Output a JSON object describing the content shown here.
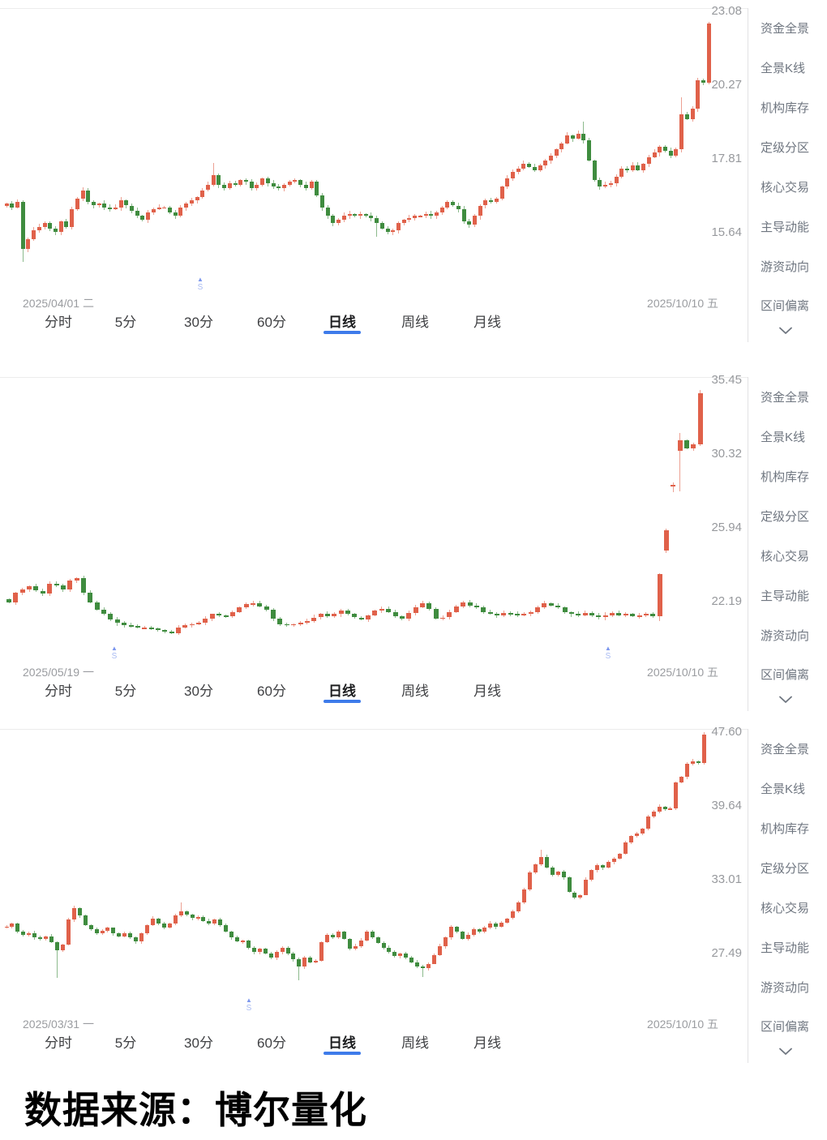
{
  "footer": {
    "source_text": "数据来源：博尔量化"
  },
  "colors": {
    "up": "#e0614a",
    "down": "#3f8c3f",
    "tab_underline": "#3e7bea",
    "signal_triangle": "#7c97ee",
    "signal_letter": "#a9bbf2",
    "axis_text": "#97999d",
    "sidebar_text": "#6f7680",
    "divider": "#e2e2e4"
  },
  "sidebar_items": [
    "资金全景",
    "全景K线",
    "机构库存",
    "定级分区",
    "核心交易",
    "主导动能",
    "游资动向",
    "区间偏离"
  ],
  "timeframe_tabs": [
    "分时",
    "5分",
    "30分",
    "60分",
    "日线",
    "周线",
    "月线"
  ],
  "active_tab": "日线",
  "active_tab_index": 4,
  "signal_marker_glyph": "▲",
  "signal_marker_letter": "S",
  "chart_data": [
    {
      "type": "candlestick",
      "start_date": "2025/04/01 二",
      "end_date": "2025/10/10 五",
      "y_axis_labels": [
        "23.08",
        "20.27",
        "17.81",
        "15.64"
      ],
      "y_log_scale": true,
      "signals_x": [
        247
      ],
      "first_open": 16.38,
      "closes": [
        16.45,
        16.35,
        16.5,
        15.2,
        15.45,
        15.7,
        15.8,
        15.9,
        15.75,
        15.65,
        15.95,
        15.8,
        16.3,
        16.6,
        16.85,
        16.5,
        16.4,
        16.45,
        16.35,
        16.3,
        16.35,
        16.55,
        16.4,
        16.25,
        16.1,
        16.0,
        16.2,
        16.3,
        16.35,
        16.35,
        16.2,
        16.1,
        16.35,
        16.45,
        16.55,
        16.65,
        16.85,
        17.0,
        17.3,
        17.0,
        16.9,
        17.05,
        17.0,
        17.15,
        17.1,
        16.9,
        17.0,
        17.2,
        17.05,
        16.95,
        16.9,
        17.0,
        17.1,
        17.15,
        17.0,
        16.9,
        17.1,
        16.7,
        16.35,
        16.1,
        15.9,
        16.0,
        16.1,
        16.15,
        16.1,
        16.15,
        16.1,
        16.05,
        15.9,
        15.75,
        15.65,
        15.7,
        15.9,
        16.0,
        16.05,
        16.1,
        16.1,
        16.15,
        16.1,
        16.2,
        16.35,
        16.5,
        16.4,
        16.3,
        15.95,
        15.85,
        16.1,
        16.4,
        16.55,
        16.5,
        16.6,
        16.95,
        17.2,
        17.4,
        17.5,
        17.65,
        17.55,
        17.45,
        17.6,
        17.75,
        17.9,
        18.1,
        18.3,
        18.55,
        18.45,
        18.6,
        18.4,
        17.75,
        17.15,
        16.95,
        17.0,
        17.05,
        17.25,
        17.5,
        17.45,
        17.6,
        17.45,
        17.65,
        17.85,
        18.0,
        18.2,
        18.05,
        17.9,
        18.1,
        19.25,
        19.1,
        19.45,
        20.45,
        20.35,
        22.6
      ],
      "opens_override": [],
      "spikes_low": [
        [
          3,
          14.85
        ],
        [
          68,
          15.52
        ]
      ],
      "spikes_high": [
        [
          38,
          17.68
        ],
        [
          106,
          19.0
        ],
        [
          124,
          19.85
        ]
      ]
    },
    {
      "type": "candlestick",
      "start_date": "2025/05/19 一",
      "end_date": "2025/10/10 五",
      "y_axis_labels": [
        "35.45",
        "30.32",
        "25.94",
        "22.19"
      ],
      "y_log_scale": true,
      "signals_x": [
        141,
        750
      ],
      "first_open": 22.28,
      "closes": [
        22.15,
        22.6,
        22.75,
        22.9,
        22.7,
        22.55,
        23.05,
        22.95,
        22.75,
        23.2,
        23.3,
        22.6,
        22.15,
        21.8,
        21.6,
        21.35,
        21.2,
        21.1,
        21.05,
        21.0,
        21.0,
        20.95,
        20.9,
        20.8,
        20.75,
        21.0,
        21.1,
        21.15,
        21.2,
        21.4,
        21.6,
        21.55,
        21.5,
        21.7,
        21.9,
        22.05,
        22.1,
        21.95,
        21.8,
        21.4,
        21.15,
        21.1,
        21.15,
        21.2,
        21.3,
        21.45,
        21.6,
        21.5,
        21.6,
        21.75,
        21.6,
        21.45,
        21.35,
        21.55,
        21.75,
        21.85,
        21.7,
        21.5,
        21.4,
        21.65,
        21.9,
        22.1,
        21.85,
        21.4,
        21.45,
        21.7,
        21.95,
        22.15,
        22.0,
        21.9,
        21.7,
        21.6,
        21.55,
        21.65,
        21.6,
        21.55,
        21.6,
        21.7,
        21.9,
        22.1,
        22.0,
        21.9,
        21.7,
        21.6,
        21.55,
        21.65,
        21.55,
        21.45,
        21.55,
        21.65,
        21.55,
        21.6,
        21.5,
        21.55,
        21.6,
        21.5,
        23.5,
        25.8,
        28.4,
        31.2,
        30.7,
        30.95,
        34.5
      ],
      "opens_override": [
        [
          97,
          24.7
        ],
        [
          98,
          28.3
        ],
        [
          99,
          30.5
        ]
      ],
      "spikes_low": [
        [
          96,
          21.3
        ],
        [
          98,
          27.95
        ],
        [
          99,
          28.0
        ]
      ],
      "spikes_high": [
        [
          99,
          31.7
        ],
        [
          102,
          34.7
        ]
      ]
    },
    {
      "type": "candlestick",
      "start_date": "2025/03/31 一",
      "end_date": "2025/10/10 五",
      "y_axis_labels": [
        "47.60",
        "39.64",
        "33.01",
        "27.49"
      ],
      "y_log_scale": true,
      "signals_x": [
        307
      ],
      "first_open": 29.3,
      "closes": [
        29.4,
        29.6,
        29.0,
        28.8,
        28.9,
        28.6,
        28.5,
        28.7,
        28.3,
        27.7,
        28.1,
        29.9,
        30.8,
        30.2,
        29.5,
        29.2,
        28.9,
        29.1,
        29.3,
        28.9,
        28.7,
        28.9,
        28.6,
        28.3,
        28.9,
        29.5,
        30.0,
        29.6,
        29.3,
        29.6,
        30.2,
        30.5,
        30.3,
        30.0,
        30.1,
        29.8,
        29.6,
        29.9,
        29.5,
        29.0,
        28.6,
        28.3,
        28.4,
        27.9,
        27.6,
        27.8,
        27.5,
        27.2,
        27.6,
        27.9,
        27.5,
        27.1,
        26.6,
        27.2,
        26.9,
        27.0,
        28.3,
        28.8,
        28.6,
        29.0,
        28.5,
        27.8,
        28.0,
        28.4,
        29.0,
        28.6,
        28.2,
        27.9,
        27.6,
        27.3,
        27.5,
        27.2,
        26.9,
        26.6,
        26.5,
        26.8,
        27.4,
        28.0,
        28.6,
        29.4,
        29.0,
        28.5,
        28.8,
        29.2,
        29.0,
        29.3,
        29.6,
        29.4,
        29.7,
        30.0,
        30.5,
        31.2,
        32.2,
        33.6,
        34.3,
        34.9,
        34.0,
        33.4,
        33.7,
        33.2,
        32.0,
        31.6,
        31.8,
        33.0,
        33.8,
        34.2,
        34.0,
        34.5,
        34.8,
        35.2,
        36.2,
        36.8,
        37.0,
        37.5,
        38.6,
        39.1,
        39.6,
        39.3,
        39.4,
        42.0,
        42.6,
        44.0,
        44.3,
        44.1,
        47.3
      ],
      "opens_override": [],
      "spikes_low": [
        [
          9,
          25.9
        ],
        [
          52,
          25.75
        ],
        [
          74,
          25.95
        ]
      ],
      "spikes_high": [
        [
          31,
          31.2
        ],
        [
          95,
          35.6
        ]
      ]
    }
  ]
}
